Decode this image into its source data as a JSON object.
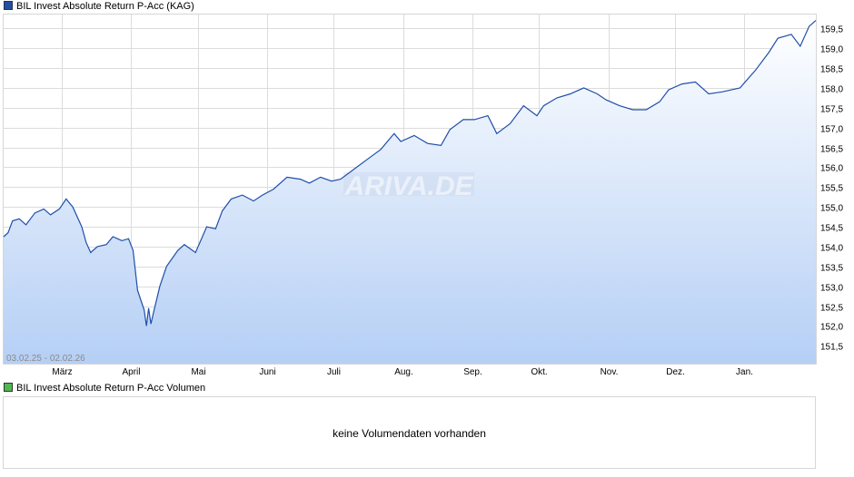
{
  "legend": {
    "main_label": "BIL Invest Absolute Return P-Acc (KAG)",
    "main_color": "#1f4fa8",
    "volume_label": "BIL Invest Absolute Return P-Acc Volumen",
    "volume_color": "#4fb84f"
  },
  "watermark": "ARIVA.DE",
  "volume_message": "keine Volumendaten vorhanden",
  "chart_data": {
    "type": "area",
    "date_range_label": "03.02.25 - 02.02.26",
    "x_tick_labels": [
      "März",
      "April",
      "Mai",
      "Juni",
      "Juli",
      "Aug.",
      "Sep.",
      "Okt.",
      "Nov.",
      "Dez.",
      "Jan."
    ],
    "y_tick_labels": [
      "151,5",
      "152,0",
      "152,5",
      "153,0",
      "153,5",
      "154,0",
      "154,5",
      "155,0",
      "155,5",
      "156,0",
      "156,5",
      "157,0",
      "157,5",
      "158,0",
      "158,5",
      "159,0",
      "159,5"
    ],
    "y_ticks": [
      151.5,
      152.0,
      152.5,
      153.0,
      153.5,
      154.0,
      154.5,
      155.0,
      155.5,
      156.0,
      156.5,
      157.0,
      157.5,
      158.0,
      158.5,
      159.0,
      159.5
    ],
    "ylim": [
      151.05,
      159.85
    ],
    "xlim": [
      "2025-02-03",
      "2026-02-02"
    ],
    "grid": true,
    "line_color": "#1f4fa8",
    "fill_top_color": "#ffffff",
    "fill_bottom_color": "#b5cff5",
    "series": [
      {
        "dates": [
          "2025-02-03",
          "2025-02-05",
          "2025-02-07",
          "2025-02-10",
          "2025-02-13",
          "2025-02-17",
          "2025-02-21",
          "2025-02-24",
          "2025-02-28",
          "2025-03-03",
          "2025-03-06",
          "2025-03-10",
          "2025-03-12",
          "2025-03-14",
          "2025-03-17",
          "2025-03-21",
          "2025-03-24",
          "2025-03-28",
          "2025-03-31",
          "2025-04-02",
          "2025-04-04",
          "2025-04-07",
          "2025-04-08",
          "2025-04-09",
          "2025-04-10",
          "2025-04-11",
          "2025-04-14",
          "2025-04-17",
          "2025-04-22",
          "2025-04-25",
          "2025-04-30",
          "2025-05-05",
          "2025-05-09",
          "2025-05-12",
          "2025-05-16",
          "2025-05-21",
          "2025-05-26",
          "2025-05-30",
          "2025-06-04",
          "2025-06-10",
          "2025-06-16",
          "2025-06-20",
          "2025-06-25",
          "2025-06-30",
          "2025-07-04",
          "2025-07-10",
          "2025-07-16",
          "2025-07-22",
          "2025-07-28",
          "2025-07-31",
          "2025-08-06",
          "2025-08-12",
          "2025-08-18",
          "2025-08-22",
          "2025-08-28",
          "2025-09-02",
          "2025-09-08",
          "2025-09-12",
          "2025-09-18",
          "2025-09-24",
          "2025-09-30",
          "2025-10-03",
          "2025-10-09",
          "2025-10-15",
          "2025-10-21",
          "2025-10-27",
          "2025-10-31",
          "2025-11-06",
          "2025-11-12",
          "2025-11-18",
          "2025-11-24",
          "2025-11-28",
          "2025-12-04",
          "2025-12-10",
          "2025-12-16",
          "2025-12-22",
          "2025-12-30",
          "2026-01-06",
          "2026-01-12",
          "2026-01-16",
          "2026-01-22",
          "2026-01-26",
          "2026-01-30",
          "2026-02-02"
        ],
        "values": [
          154.25,
          154.35,
          154.65,
          154.7,
          154.55,
          154.85,
          154.95,
          154.8,
          154.95,
          155.2,
          155.0,
          154.5,
          154.1,
          153.85,
          154.0,
          154.05,
          154.25,
          154.15,
          154.2,
          153.9,
          152.9,
          152.4,
          152.0,
          152.45,
          152.05,
          152.3,
          153.0,
          153.5,
          153.9,
          154.05,
          153.85,
          154.5,
          154.45,
          154.9,
          155.2,
          155.3,
          155.15,
          155.3,
          155.45,
          155.75,
          155.7,
          155.6,
          155.75,
          155.65,
          155.7,
          155.95,
          156.2,
          156.45,
          156.85,
          156.65,
          156.8,
          156.6,
          156.55,
          156.95,
          157.2,
          157.2,
          157.3,
          156.85,
          157.1,
          157.55,
          157.3,
          157.55,
          157.75,
          157.85,
          158.0,
          157.85,
          157.7,
          157.55,
          157.45,
          157.45,
          157.65,
          157.95,
          158.1,
          158.15,
          157.85,
          157.9,
          158.0,
          158.45,
          158.9,
          159.25,
          159.35,
          159.05,
          159.55,
          159.7
        ]
      }
    ]
  }
}
